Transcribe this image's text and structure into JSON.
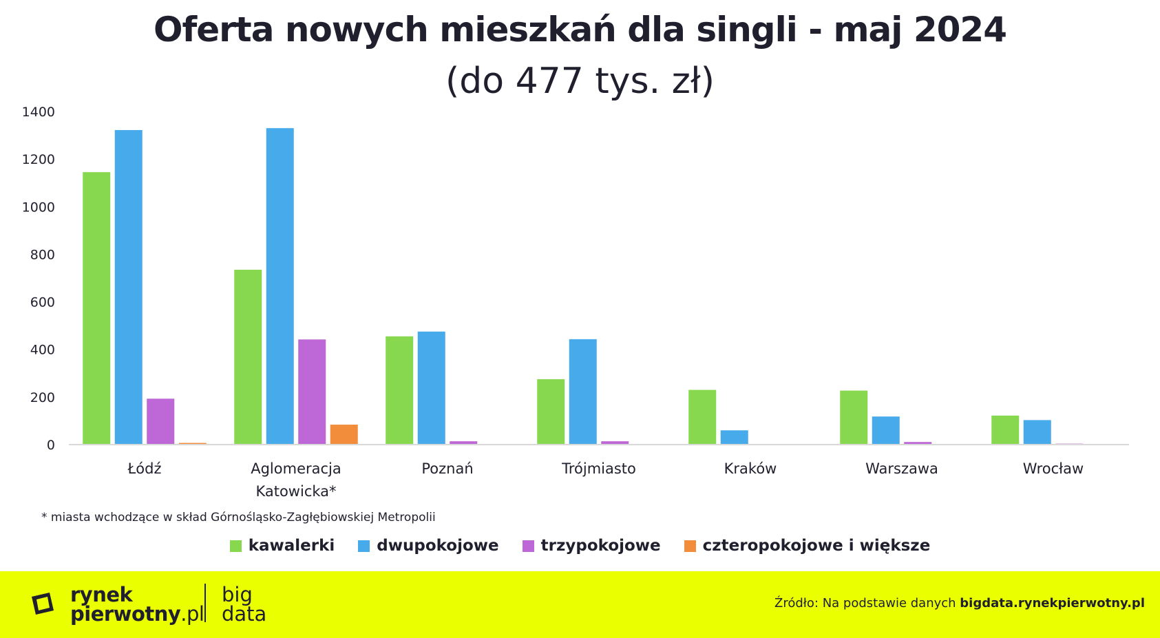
{
  "header": {
    "title": "Oferta nowych mieszkań dla singli - maj 2024",
    "subtitle": "(do 477 tys. zł)"
  },
  "footnote": "* miasta wchodzące w skład Górnośląsko-Zagłębiowskiej Metropolii",
  "footer": {
    "logo_line1": "rynek",
    "logo_line2_bold": "pierwotny",
    "logo_line2_thin": ".pl",
    "logo_big_line1": "big",
    "logo_big_line2": "data",
    "source_prefix": "Źródło: Na podstawie danych ",
    "source_bold": "bigdata.rynekpierwotny.pl"
  },
  "chart_data": {
    "type": "bar",
    "title": "Oferta nowych mieszkań dla singli - maj 2024",
    "subtitle": "(do 477 tys. zł)",
    "xlabel": "",
    "ylabel": "",
    "ylim": [
      0,
      1400
    ],
    "yticks": [
      0,
      200,
      400,
      600,
      800,
      1000,
      1200,
      1400
    ],
    "grid": false,
    "legend_position": "bottom",
    "categories": [
      [
        "Łódź"
      ],
      [
        "Aglomeracja",
        "Katowicka*"
      ],
      [
        "Poznań"
      ],
      [
        "Trójmiasto"
      ],
      [
        "Kraków"
      ],
      [
        "Warszawa"
      ],
      [
        "Wrocław"
      ]
    ],
    "series": [
      {
        "name": "kawalerki",
        "color": "#88d84f",
        "values": [
          1145,
          735,
          455,
          275,
          230,
          227,
          122
        ]
      },
      {
        "name": "dwupokojowe",
        "color": "#47aaea",
        "values": [
          1322,
          1330,
          475,
          443,
          60,
          118,
          103
        ]
      },
      {
        "name": "trzypokojowe",
        "color": "#bd68d6",
        "values": [
          193,
          442,
          14,
          14,
          0,
          11,
          4
        ]
      },
      {
        "name": "czteropokojowe i większe",
        "color": "#f28d3c",
        "values": [
          7,
          84,
          0,
          0,
          0,
          0,
          0
        ]
      }
    ]
  }
}
